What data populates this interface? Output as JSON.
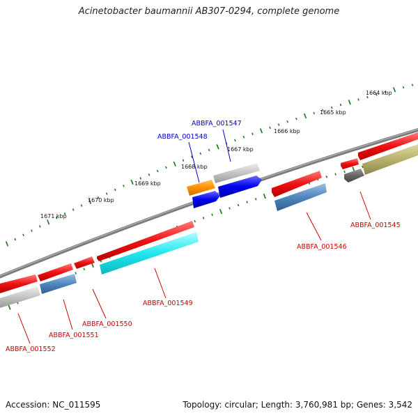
{
  "title": "Acinetobacter baumannii AB307-0294, complete genome",
  "footer": {
    "accession": "Accession: NC_011595",
    "topology": "Topology: circular; Length: 3,760,981 bp; Genes: 3,542"
  },
  "colors": {
    "backbone": "#7a7a7a",
    "tick": "#1f7a1f",
    "label_red": "#cc0000",
    "label_blue": "#0000cc"
  },
  "scale_labels": [
    "1664 kbp",
    "1665 kbp",
    "1666 kbp",
    "1667 kbp",
    "1668 kbp",
    "1669 kbp",
    "1670 kbp",
    "1671 kbp"
  ],
  "gene_labels": [
    {
      "text": "ABBFA_001545",
      "color": "red"
    },
    {
      "text": "ABBFA_001546",
      "color": "red"
    },
    {
      "text": "ABBFA_001547",
      "color": "blue"
    },
    {
      "text": "ABBFA_001548",
      "color": "blue"
    },
    {
      "text": "ABBFA_001549",
      "color": "red"
    },
    {
      "text": "ABBFA_001550",
      "color": "red"
    },
    {
      "text": "ABBFA_001551",
      "color": "red"
    },
    {
      "text": "ABBFA_001552",
      "color": "red"
    }
  ]
}
